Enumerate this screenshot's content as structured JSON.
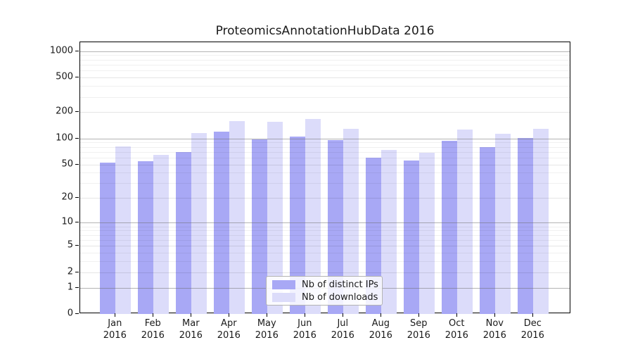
{
  "figure": {
    "title": "ProteomicsAnnotationHubData 2016"
  },
  "chart_data": {
    "type": "bar",
    "title": "ProteomicsAnnotationHubData 2016",
    "categories": [
      "Jan 2016",
      "Feb 2016",
      "Mar 2016",
      "Apr 2016",
      "May 2016",
      "Jun 2016",
      "Jul 2016",
      "Aug 2016",
      "Sep 2016",
      "Oct 2016",
      "Nov 2016",
      "Dec 2016"
    ],
    "series": [
      {
        "name": "Nb of distinct IPs",
        "color": "#a8a8f5",
        "values": [
          52,
          54,
          70,
          120,
          97,
          105,
          95,
          60,
          55,
          94,
          79,
          101
        ]
      },
      {
        "name": "Nb of downloads",
        "color": "#dcdcfa",
        "values": [
          81,
          65,
          116,
          159,
          156,
          167,
          130,
          73,
          68,
          127,
          113,
          130
        ]
      }
    ],
    "xlabel": "",
    "ylabel": "",
    "y_scale": "log10(1+x)",
    "y_ticks": [
      0,
      1,
      2,
      5,
      10,
      20,
      50,
      100,
      200,
      500,
      1000
    ],
    "y_minor_ticks": [
      3,
      4,
      6,
      7,
      8,
      9,
      30,
      40,
      60,
      70,
      80,
      90,
      300,
      400,
      600,
      700,
      800,
      900
    ],
    "ylim": [
      0,
      1265
    ],
    "grid": "on",
    "legend_position": "inside-bottom-center",
    "colors": {
      "background": "#ffffff",
      "axis": "#000000",
      "major_gridline": "#a9a9a9",
      "minor_gridline": "#ededed",
      "text": "#1a1a1a"
    }
  }
}
